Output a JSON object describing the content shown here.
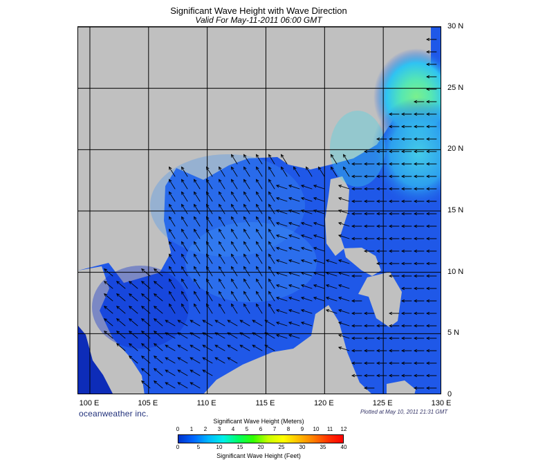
{
  "title": "Significant Wave Height with Wave Direction",
  "subtitle": "Valid For May-11-2011 06:00 GMT",
  "map": {
    "lon_range": [
      99,
      130
    ],
    "lat_range": [
      0,
      30
    ],
    "longitude_ticks": [
      {
        "value": 100,
        "label": "100 E"
      },
      {
        "value": 105,
        "label": "105 E"
      },
      {
        "value": 110,
        "label": "110 E"
      },
      {
        "value": 115,
        "label": "115 E"
      },
      {
        "value": 120,
        "label": "120 E"
      },
      {
        "value": 125,
        "label": "125 E"
      },
      {
        "value": 130,
        "label": "130 E"
      }
    ],
    "latitude_ticks": [
      {
        "value": 0,
        "label": "0"
      },
      {
        "value": 5,
        "label": "5 N"
      },
      {
        "value": 10,
        "label": "10 N"
      },
      {
        "value": 15,
        "label": "15 N"
      },
      {
        "value": 20,
        "label": "20 N"
      },
      {
        "value": 25,
        "label": "25 N"
      },
      {
        "value": 30,
        "label": "30 N"
      }
    ],
    "colors": {
      "land": "#c0c0c0",
      "ocean": "#1f58e8",
      "ocean_light": "#3f93f4",
      "ocean_dark": "#0b2dcb",
      "cyan": "#43d6e7",
      "green": "#73f08a",
      "grid": "#000000",
      "arrow": "#000000"
    }
  },
  "brand": "oceanweather inc.",
  "plotted_text": "Plotted at May 10, 2011 21:31 GMT",
  "legend": {
    "meters_title": "Significant Wave Height (Meters)",
    "feet_title": "Significant Wave Height (Feet)",
    "meters": [
      "0",
      "1",
      "2",
      "3",
      "4",
      "5",
      "6",
      "7",
      "8",
      "9",
      "10",
      "11",
      "12"
    ],
    "feet": [
      "0",
      "5",
      "10",
      "15",
      "20",
      "25",
      "30",
      "35",
      "40"
    ],
    "gradient": [
      "#0033cc",
      "#0066ff",
      "#00b7ff",
      "#00f0e8",
      "#00ff66",
      "#33ff00",
      "#c7ff00",
      "#ffff00",
      "#ffbf00",
      "#ff7f00",
      "#ff3300",
      "#ff0000"
    ]
  }
}
